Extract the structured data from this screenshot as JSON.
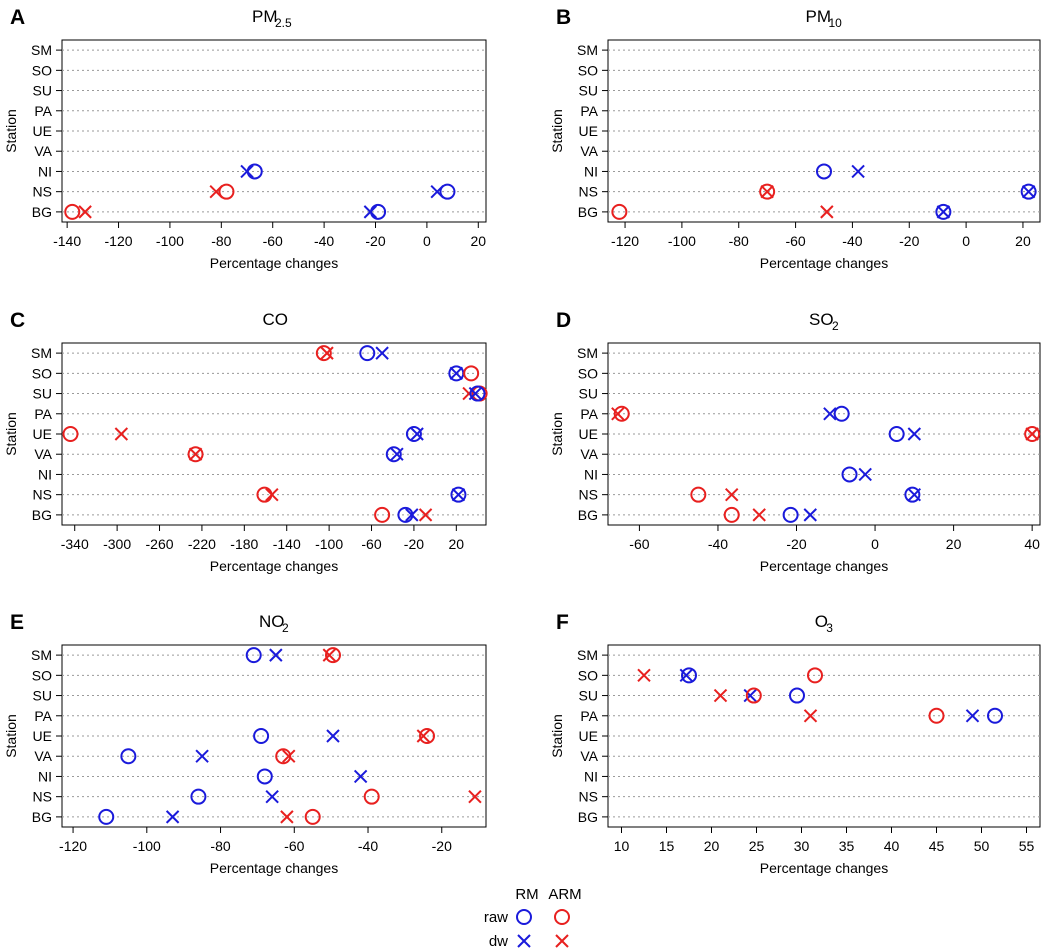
{
  "legend": {
    "col_rm": "RM",
    "col_arm": "ARM",
    "row_raw": "raw",
    "row_dw": "dw"
  },
  "colors": {
    "rm": "#1a1adb",
    "arm": "#e8201f",
    "grid": "#9a9a9a"
  },
  "chart_data": [
    {
      "type": "scatter",
      "panel": "A",
      "title": "PM",
      "title_sub": "2.5",
      "xlabel": "Percentage changes",
      "ylabel": "Station",
      "stations": [
        "SM",
        "SO",
        "SU",
        "PA",
        "UE",
        "VA",
        "NI",
        "NS",
        "BG"
      ],
      "xlim": [
        -142,
        23
      ],
      "xticks": [
        -140,
        -120,
        -100,
        -80,
        -60,
        -40,
        -20,
        0,
        20
      ],
      "points": [
        {
          "station": "NI",
          "model": "RM",
          "kind": "raw",
          "x": -67
        },
        {
          "station": "NI",
          "model": "RM",
          "kind": "dw",
          "x": -70
        },
        {
          "station": "NS",
          "model": "ARM",
          "kind": "raw",
          "x": -78
        },
        {
          "station": "NS",
          "model": "ARM",
          "kind": "dw",
          "x": -82
        },
        {
          "station": "NS",
          "model": "RM",
          "kind": "raw",
          "x": 8
        },
        {
          "station": "NS",
          "model": "RM",
          "kind": "dw",
          "x": 4
        },
        {
          "station": "BG",
          "model": "ARM",
          "kind": "raw",
          "x": -138
        },
        {
          "station": "BG",
          "model": "ARM",
          "kind": "dw",
          "x": -133
        },
        {
          "station": "BG",
          "model": "RM",
          "kind": "raw",
          "x": -19
        },
        {
          "station": "BG",
          "model": "RM",
          "kind": "dw",
          "x": -22
        }
      ]
    },
    {
      "type": "scatter",
      "panel": "B",
      "title": "PM",
      "title_sub": "10",
      "xlabel": "Percentage changes",
      "ylabel": "Station",
      "stations": [
        "SM",
        "SO",
        "SU",
        "PA",
        "UE",
        "VA",
        "NI",
        "NS",
        "BG"
      ],
      "xlim": [
        -126,
        26
      ],
      "xticks": [
        -120,
        -100,
        -80,
        -60,
        -40,
        -20,
        0,
        20
      ],
      "points": [
        {
          "station": "NI",
          "model": "RM",
          "kind": "raw",
          "x": -50
        },
        {
          "station": "NI",
          "model": "RM",
          "kind": "dw",
          "x": -38
        },
        {
          "station": "NS",
          "model": "ARM",
          "kind": "raw",
          "x": -70
        },
        {
          "station": "NS",
          "model": "ARM",
          "kind": "dw",
          "x": -70
        },
        {
          "station": "NS",
          "model": "RM",
          "kind": "raw",
          "x": 22
        },
        {
          "station": "NS",
          "model": "RM",
          "kind": "dw",
          "x": 22
        },
        {
          "station": "BG",
          "model": "ARM",
          "kind": "raw",
          "x": -122
        },
        {
          "station": "BG",
          "model": "ARM",
          "kind": "dw",
          "x": -49
        },
        {
          "station": "BG",
          "model": "RM",
          "kind": "raw",
          "x": -8
        },
        {
          "station": "BG",
          "model": "RM",
          "kind": "dw",
          "x": -8
        }
      ]
    },
    {
      "type": "scatter",
      "panel": "C",
      "title": "CO",
      "title_sub": "",
      "xlabel": "Percentage changes",
      "ylabel": "Station",
      "stations": [
        "SM",
        "SO",
        "SU",
        "PA",
        "UE",
        "VA",
        "NI",
        "NS",
        "BG"
      ],
      "xlim": [
        -352,
        48
      ],
      "xticks": [
        -340,
        -300,
        -260,
        -220,
        -180,
        -140,
        -100,
        -60,
        -20,
        20
      ],
      "points": [
        {
          "station": "SM",
          "model": "ARM",
          "kind": "raw",
          "x": -105
        },
        {
          "station": "SM",
          "model": "ARM",
          "kind": "dw",
          "x": -102
        },
        {
          "station": "SM",
          "model": "RM",
          "kind": "raw",
          "x": -64
        },
        {
          "station": "SM",
          "model": "RM",
          "kind": "dw",
          "x": -50
        },
        {
          "station": "SO",
          "model": "RM",
          "kind": "raw",
          "x": 20
        },
        {
          "station": "SO",
          "model": "RM",
          "kind": "dw",
          "x": 20
        },
        {
          "station": "SO",
          "model": "ARM",
          "kind": "raw",
          "x": 34
        },
        {
          "station": "SU",
          "model": "ARM",
          "kind": "raw",
          "x": 42
        },
        {
          "station": "SU",
          "model": "ARM",
          "kind": "dw",
          "x": 32
        },
        {
          "station": "SU",
          "model": "RM",
          "kind": "raw",
          "x": 40
        },
        {
          "station": "SU",
          "model": "RM",
          "kind": "dw",
          "x": 38
        },
        {
          "station": "UE",
          "model": "ARM",
          "kind": "raw",
          "x": -344
        },
        {
          "station": "UE",
          "model": "ARM",
          "kind": "dw",
          "x": -296
        },
        {
          "station": "UE",
          "model": "RM",
          "kind": "raw",
          "x": -20
        },
        {
          "station": "UE",
          "model": "RM",
          "kind": "dw",
          "x": -17
        },
        {
          "station": "VA",
          "model": "ARM",
          "kind": "raw",
          "x": -226
        },
        {
          "station": "VA",
          "model": "ARM",
          "kind": "dw",
          "x": -226
        },
        {
          "station": "VA",
          "model": "RM",
          "kind": "raw",
          "x": -39
        },
        {
          "station": "VA",
          "model": "RM",
          "kind": "dw",
          "x": -36
        },
        {
          "station": "NS",
          "model": "ARM",
          "kind": "raw",
          "x": -161
        },
        {
          "station": "NS",
          "model": "ARM",
          "kind": "dw",
          "x": -154
        },
        {
          "station": "NS",
          "model": "RM",
          "kind": "raw",
          "x": 22
        },
        {
          "station": "NS",
          "model": "RM",
          "kind": "dw",
          "x": 22
        },
        {
          "station": "BG",
          "model": "ARM",
          "kind": "raw",
          "x": -50
        },
        {
          "station": "BG",
          "model": "ARM",
          "kind": "dw",
          "x": -9
        },
        {
          "station": "BG",
          "model": "RM",
          "kind": "raw",
          "x": -28
        },
        {
          "station": "BG",
          "model": "RM",
          "kind": "dw",
          "x": -22
        }
      ]
    },
    {
      "type": "scatter",
      "panel": "D",
      "title": "SO",
      "title_sub": "2",
      "xlabel": "Percentage changes",
      "ylabel": "Station",
      "stations": [
        "SM",
        "SO",
        "SU",
        "PA",
        "UE",
        "VA",
        "NI",
        "NS",
        "BG"
      ],
      "xlim": [
        -68,
        42
      ],
      "xticks": [
        -60,
        -40,
        -20,
        0,
        20,
        40
      ],
      "points": [
        {
          "station": "PA",
          "model": "ARM",
          "kind": "raw",
          "x": -64.5
        },
        {
          "station": "PA",
          "model": "ARM",
          "kind": "dw",
          "x": -65.5
        },
        {
          "station": "PA",
          "model": "RM",
          "kind": "raw",
          "x": -8.5
        },
        {
          "station": "PA",
          "model": "RM",
          "kind": "dw",
          "x": -11.5
        },
        {
          "station": "UE",
          "model": "RM",
          "kind": "raw",
          "x": 5.5
        },
        {
          "station": "UE",
          "model": "RM",
          "kind": "dw",
          "x": 10
        },
        {
          "station": "UE",
          "model": "ARM",
          "kind": "raw",
          "x": 40
        },
        {
          "station": "UE",
          "model": "ARM",
          "kind": "dw",
          "x": 40
        },
        {
          "station": "NI",
          "model": "RM",
          "kind": "raw",
          "x": -6.5
        },
        {
          "station": "NI",
          "model": "RM",
          "kind": "dw",
          "x": -2.5
        },
        {
          "station": "NS",
          "model": "ARM",
          "kind": "raw",
          "x": -45
        },
        {
          "station": "NS",
          "model": "ARM",
          "kind": "dw",
          "x": -36.5
        },
        {
          "station": "NS",
          "model": "RM",
          "kind": "raw",
          "x": 9.5
        },
        {
          "station": "NS",
          "model": "RM",
          "kind": "dw",
          "x": 10
        },
        {
          "station": "BG",
          "model": "ARM",
          "kind": "raw",
          "x": -36.5
        },
        {
          "station": "BG",
          "model": "ARM",
          "kind": "dw",
          "x": -29.5
        },
        {
          "station": "BG",
          "model": "RM",
          "kind": "raw",
          "x": -21.5
        },
        {
          "station": "BG",
          "model": "RM",
          "kind": "dw",
          "x": -16.5
        }
      ]
    },
    {
      "type": "scatter",
      "panel": "E",
      "title": "NO",
      "title_sub": "2",
      "xlabel": "Percentage changes",
      "ylabel": "Station",
      "stations": [
        "SM",
        "SO",
        "SU",
        "PA",
        "UE",
        "VA",
        "NI",
        "NS",
        "BG"
      ],
      "xlim": [
        -123,
        -8
      ],
      "xticks": [
        -120,
        -100,
        -80,
        -60,
        -40,
        -20
      ],
      "points": [
        {
          "station": "SM",
          "model": "RM",
          "kind": "raw",
          "x": -71
        },
        {
          "station": "SM",
          "model": "RM",
          "kind": "dw",
          "x": -65
        },
        {
          "station": "SM",
          "model": "ARM",
          "kind": "raw",
          "x": -49.5
        },
        {
          "station": "SM",
          "model": "ARM",
          "kind": "dw",
          "x": -50.5
        },
        {
          "station": "UE",
          "model": "RM",
          "kind": "raw",
          "x": -69
        },
        {
          "station": "UE",
          "model": "RM",
          "kind": "dw",
          "x": -49.5
        },
        {
          "station": "UE",
          "model": "ARM",
          "kind": "raw",
          "x": -24
        },
        {
          "station": "UE",
          "model": "ARM",
          "kind": "dw",
          "x": -25
        },
        {
          "station": "VA",
          "model": "RM",
          "kind": "raw",
          "x": -105
        },
        {
          "station": "VA",
          "model": "RM",
          "kind": "dw",
          "x": -85
        },
        {
          "station": "VA",
          "model": "ARM",
          "kind": "raw",
          "x": -63
        },
        {
          "station": "VA",
          "model": "ARM",
          "kind": "dw",
          "x": -61.5
        },
        {
          "station": "NI",
          "model": "RM",
          "kind": "raw",
          "x": -68
        },
        {
          "station": "NI",
          "model": "RM",
          "kind": "dw",
          "x": -42
        },
        {
          "station": "NS",
          "model": "RM",
          "kind": "raw",
          "x": -86
        },
        {
          "station": "NS",
          "model": "RM",
          "kind": "dw",
          "x": -66
        },
        {
          "station": "NS",
          "model": "ARM",
          "kind": "raw",
          "x": -39
        },
        {
          "station": "NS",
          "model": "ARM",
          "kind": "dw",
          "x": -11
        },
        {
          "station": "BG",
          "model": "RM",
          "kind": "raw",
          "x": -111
        },
        {
          "station": "BG",
          "model": "RM",
          "kind": "dw",
          "x": -93
        },
        {
          "station": "BG",
          "model": "ARM",
          "kind": "raw",
          "x": -55
        },
        {
          "station": "BG",
          "model": "ARM",
          "kind": "dw",
          "x": -62
        }
      ]
    },
    {
      "type": "scatter",
      "panel": "F",
      "title": "O",
      "title_sub": "3",
      "xlabel": "Percentage changes",
      "ylabel": "Station",
      "stations": [
        "SM",
        "SO",
        "SU",
        "PA",
        "UE",
        "VA",
        "NI",
        "NS",
        "BG"
      ],
      "xlim": [
        8.5,
        56.5
      ],
      "xticks": [
        10,
        15,
        20,
        25,
        30,
        35,
        40,
        45,
        50,
        55
      ],
      "points": [
        {
          "station": "SO",
          "model": "ARM",
          "kind": "dw",
          "x": 12.5
        },
        {
          "station": "SO",
          "model": "RM",
          "kind": "raw",
          "x": 17.5
        },
        {
          "station": "SO",
          "model": "RM",
          "kind": "dw",
          "x": 17.2
        },
        {
          "station": "SO",
          "model": "ARM",
          "kind": "raw",
          "x": 31.5
        },
        {
          "station": "SU",
          "model": "ARM",
          "kind": "dw",
          "x": 21
        },
        {
          "station": "SU",
          "model": "RM",
          "kind": "dw",
          "x": 24.3
        },
        {
          "station": "SU",
          "model": "ARM",
          "kind": "raw",
          "x": 24.7
        },
        {
          "station": "SU",
          "model": "RM",
          "kind": "raw",
          "x": 29.5
        },
        {
          "station": "PA",
          "model": "ARM",
          "kind": "dw",
          "x": 31
        },
        {
          "station": "PA",
          "model": "ARM",
          "kind": "raw",
          "x": 45
        },
        {
          "station": "PA",
          "model": "RM",
          "kind": "dw",
          "x": 49
        },
        {
          "station": "PA",
          "model": "RM",
          "kind": "raw",
          "x": 51.5
        }
      ]
    }
  ]
}
